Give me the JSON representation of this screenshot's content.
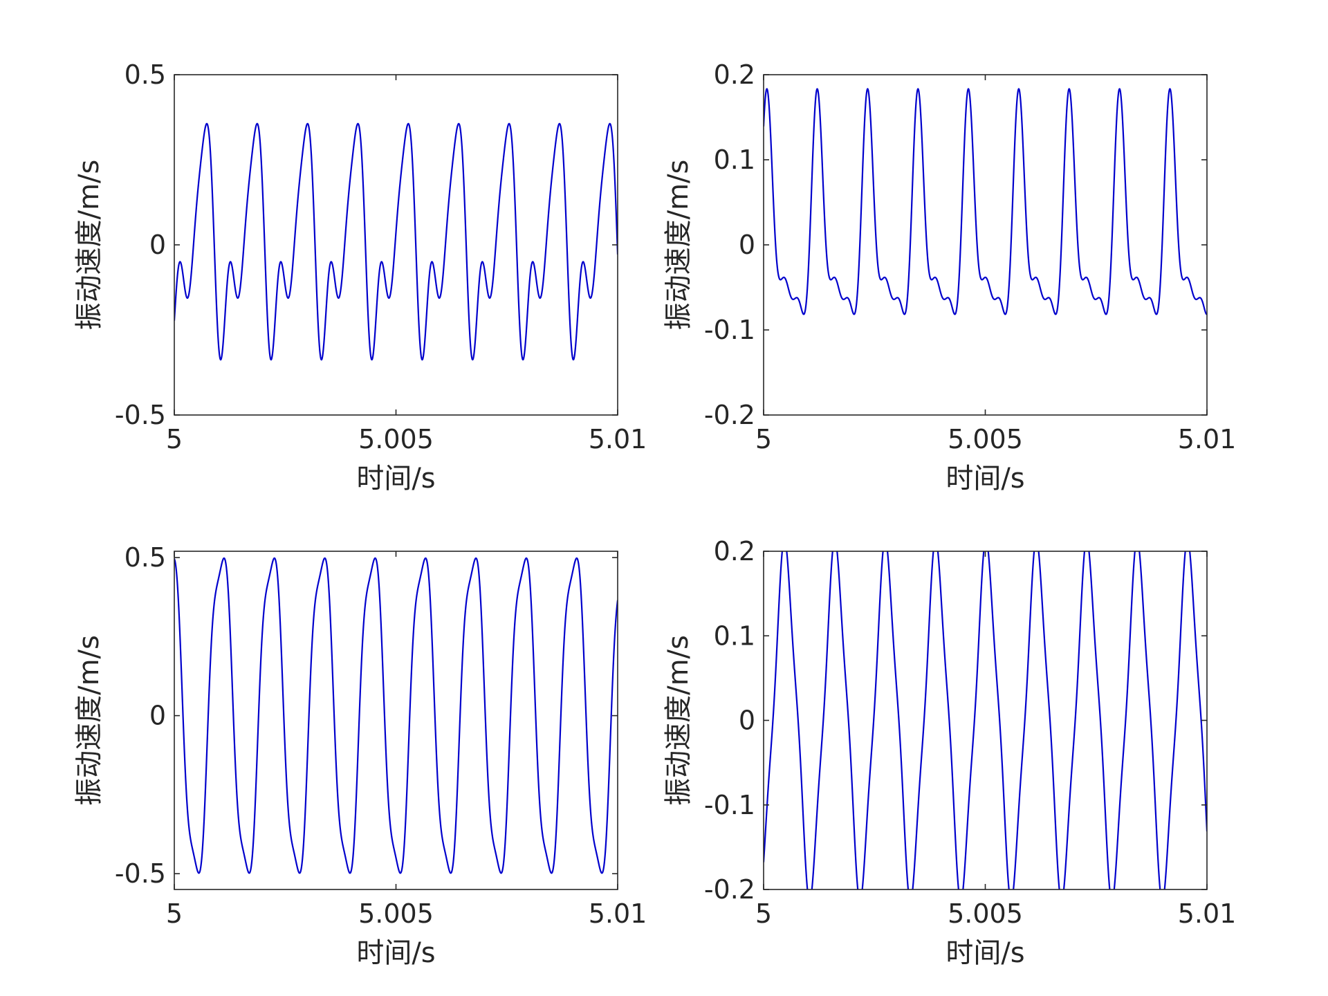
{
  "chart_data": [
    {
      "type": "line",
      "title": "",
      "xlabel": "时间/s",
      "ylabel": "振动速度/m/s",
      "xlim": [
        5,
        5.01
      ],
      "ylim": [
        -0.5,
        0.5
      ],
      "xticks": [
        5,
        5.005,
        5.01
      ],
      "xtick_labels": [
        "5",
        "5.005",
        "5.01"
      ],
      "yticks": [
        -0.5,
        0,
        0.5
      ],
      "ytick_labels": [
        "-0.5",
        "0",
        "0.5"
      ],
      "grid": false,
      "line_color": "#0000cc",
      "series": [
        {
          "frequency_hz": 880,
          "components": [
            {
              "harmonic": 1,
              "amplitude": 0.25,
              "phase": -2.0
            },
            {
              "harmonic": 2,
              "amplitude": 0.15,
              "phase": -0.05
            },
            {
              "harmonic": 3,
              "amplitude": 0.06,
              "phase": 0.2
            }
          ]
        }
      ]
    },
    {
      "type": "line",
      "title": "",
      "xlabel": "时间/s",
      "ylabel": "振动速度/m/s",
      "xlim": [
        5,
        5.01
      ],
      "ylim": [
        -0.2,
        0.2
      ],
      "xticks": [
        5,
        5.005,
        5.01
      ],
      "xtick_labels": [
        "5",
        "5.005",
        "5.01"
      ],
      "yticks": [
        -0.2,
        -0.1,
        0,
        0.1,
        0.2
      ],
      "ytick_labels": [
        "-0.2",
        "-0.1",
        "0",
        "0.1",
        "0.2"
      ],
      "grid": false,
      "line_color": "#0000cc",
      "series": [
        {
          "frequency_hz": 880,
          "components": [
            {
              "harmonic": 1,
              "amplitude": 0.1,
              "phase": 1.0
            },
            {
              "harmonic": 2,
              "amplitude": 0.06,
              "phase": 0.8
            },
            {
              "harmonic": 3,
              "amplitude": 0.025,
              "phase": 0.5
            }
          ]
        }
      ]
    },
    {
      "type": "line",
      "title": "",
      "xlabel": "时间/s",
      "ylabel": "振动速度/m/s",
      "xlim": [
        5,
        5.01
      ],
      "ylim": [
        -0.55,
        0.52
      ],
      "xticks": [
        5,
        5.005,
        5.01
      ],
      "xtick_labels": [
        "5",
        "5.005",
        "5.01"
      ],
      "yticks": [
        -0.5,
        0,
        0.5
      ],
      "ytick_labels": [
        "-0.5",
        "0",
        "0.5"
      ],
      "grid": false,
      "line_color": "#0000cc",
      "series": [
        {
          "frequency_hz": 880,
          "components": [
            {
              "harmonic": 1,
              "amplitude": 0.52,
              "phase": 2.0
            },
            {
              "harmonic": 3,
              "amplitude": 0.06,
              "phase": 0.4
            }
          ]
        }
      ]
    },
    {
      "type": "line",
      "title": "",
      "xlabel": "时间/s",
      "ylabel": "振动速度/m/s",
      "xlim": [
        5,
        5.01
      ],
      "ylim": [
        -0.2,
        0.2
      ],
      "xticks": [
        5,
        5.005,
        5.01
      ],
      "xtick_labels": [
        "5",
        "5.005",
        "5.01"
      ],
      "yticks": [
        -0.2,
        -0.1,
        0,
        0.1,
        0.2
      ],
      "ytick_labels": [
        "-0.2",
        "-0.1",
        "0",
        "0.1",
        "0.2"
      ],
      "grid": false,
      "line_color": "#0000cc",
      "series": [
        {
          "frequency_hz": 880,
          "components": [
            {
              "harmonic": 1,
              "amplitude": 0.195,
              "phase": -1.1
            },
            {
              "harmonic": 3,
              "amplitude": 0.02,
              "phase": 0.3
            }
          ]
        }
      ]
    }
  ]
}
